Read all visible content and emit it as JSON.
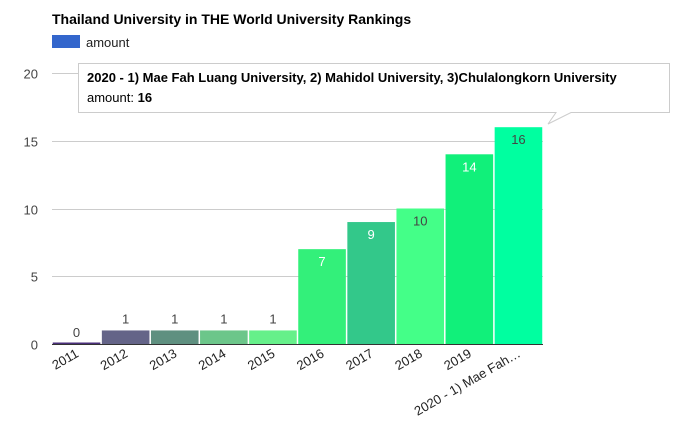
{
  "chart_data": {
    "type": "bar",
    "title": "Thailand University in THE World University Rankings",
    "legend": {
      "position": "top-left",
      "entries": [
        {
          "name": "amount",
          "color": "#3366cc"
        }
      ]
    },
    "xlabel": "",
    "ylabel": "",
    "ylim": [
      0,
      20
    ],
    "yticks": [
      0,
      5,
      10,
      15,
      20
    ],
    "grid": true,
    "categories": [
      "2011",
      "2012",
      "2013",
      "2014",
      "2015",
      "2016",
      "2017",
      "2018",
      "2019",
      "2020 - 1) Mae Fah Luang University, 2) Mahidol University, 3)Chulalongkorn University"
    ],
    "tick_labels": [
      "2011",
      "2012",
      "2013",
      "2014",
      "2015",
      "2016",
      "2017",
      "2018",
      "2019",
      "2020 - 1) Mae Fah…"
    ],
    "series": [
      {
        "name": "amount",
        "values": [
          0,
          1,
          1,
          1,
          1,
          7,
          9,
          10,
          14,
          16
        ]
      }
    ],
    "bar_colors": [
      "#4a2f7a",
      "#646488",
      "#5f9080",
      "#6cc68a",
      "#66f08a",
      "#33f07a",
      "#33c88a",
      "#44ff88",
      "#11f07a",
      "#00ffa0"
    ],
    "label_colors": [
      "#444444",
      "#444444",
      "#444444",
      "#444444",
      "#444444",
      "#ffffff",
      "#ffffff",
      "#444444",
      "#ffffff",
      "#444444"
    ]
  },
  "tooltip": {
    "title": "2020 - 1) Mae Fah Luang University, 2) Mahidol University, 3)Chulalongkorn University",
    "label": "amount: ",
    "value": "16"
  }
}
